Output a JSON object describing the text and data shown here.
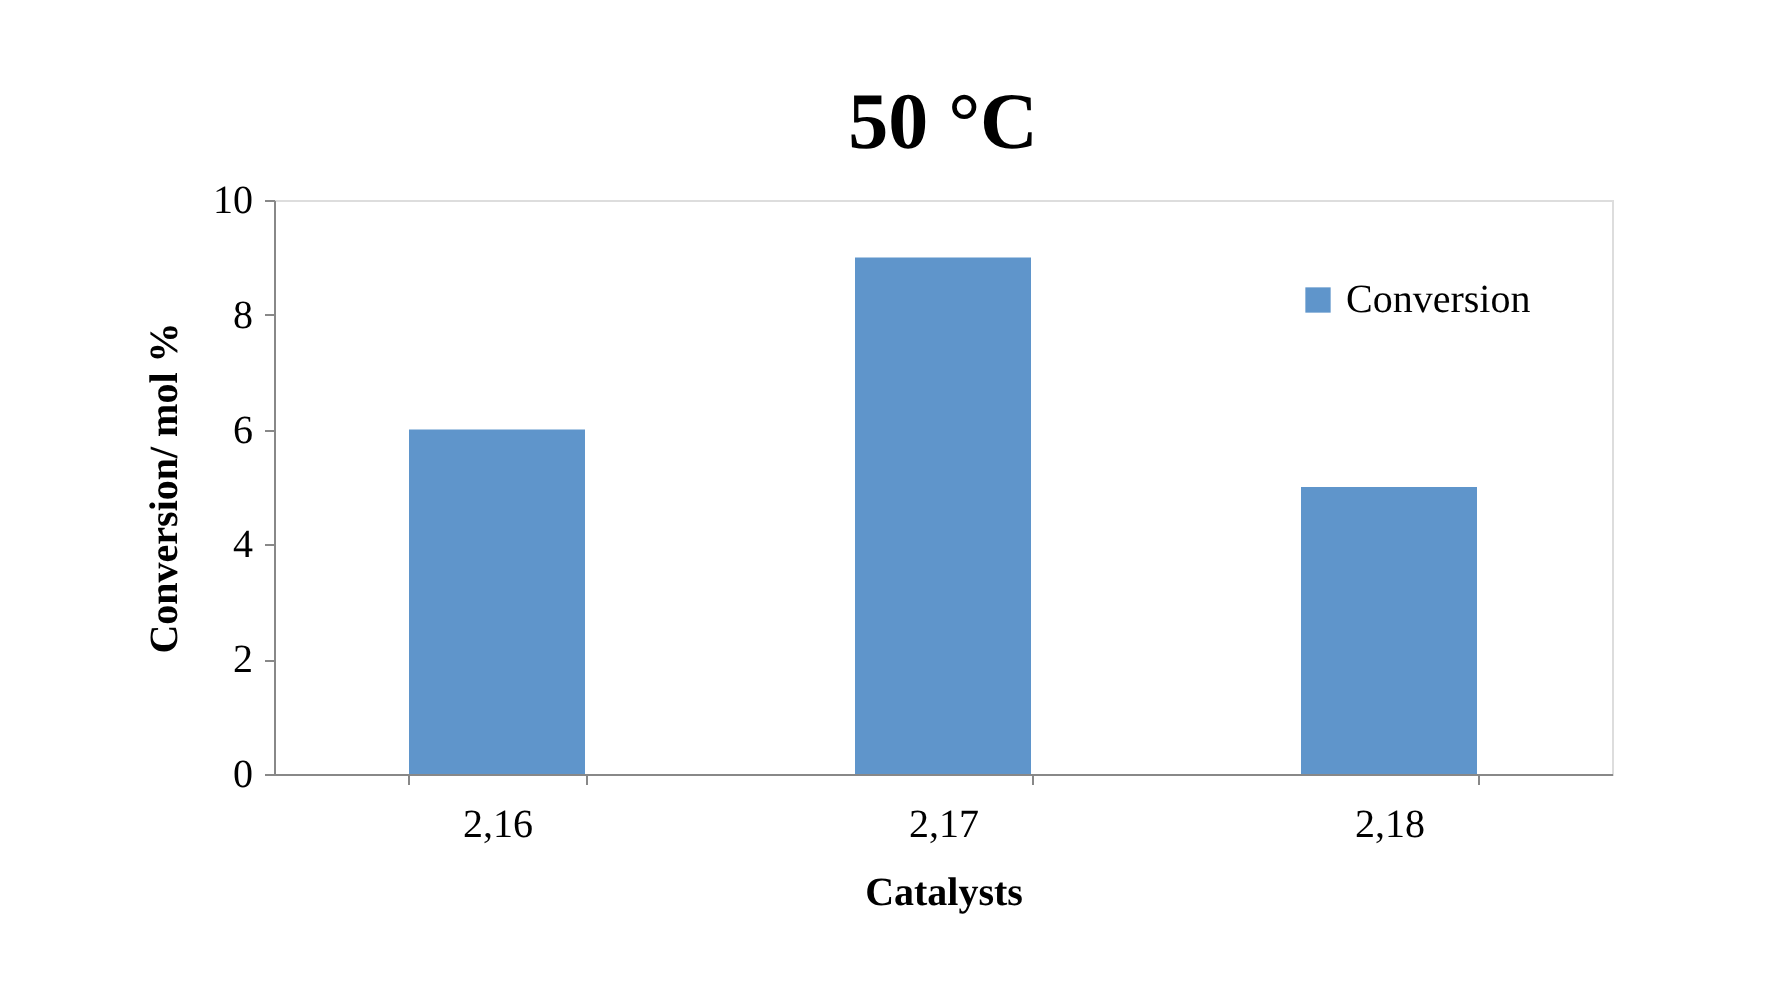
{
  "chart_data": {
    "type": "bar",
    "title": "50 °C",
    "xlabel": "Catalysts",
    "ylabel": "Conversion/ mol %",
    "categories": [
      "2,16",
      "2,17",
      "2,18"
    ],
    "series": [
      {
        "name": "Conversion",
        "color": "#5f95cb",
        "values": [
          6,
          9,
          5
        ]
      }
    ],
    "ylim": [
      0,
      10
    ],
    "yticks": [
      0,
      2,
      4,
      6,
      8,
      10
    ],
    "grid": false,
    "legend": "top right"
  }
}
